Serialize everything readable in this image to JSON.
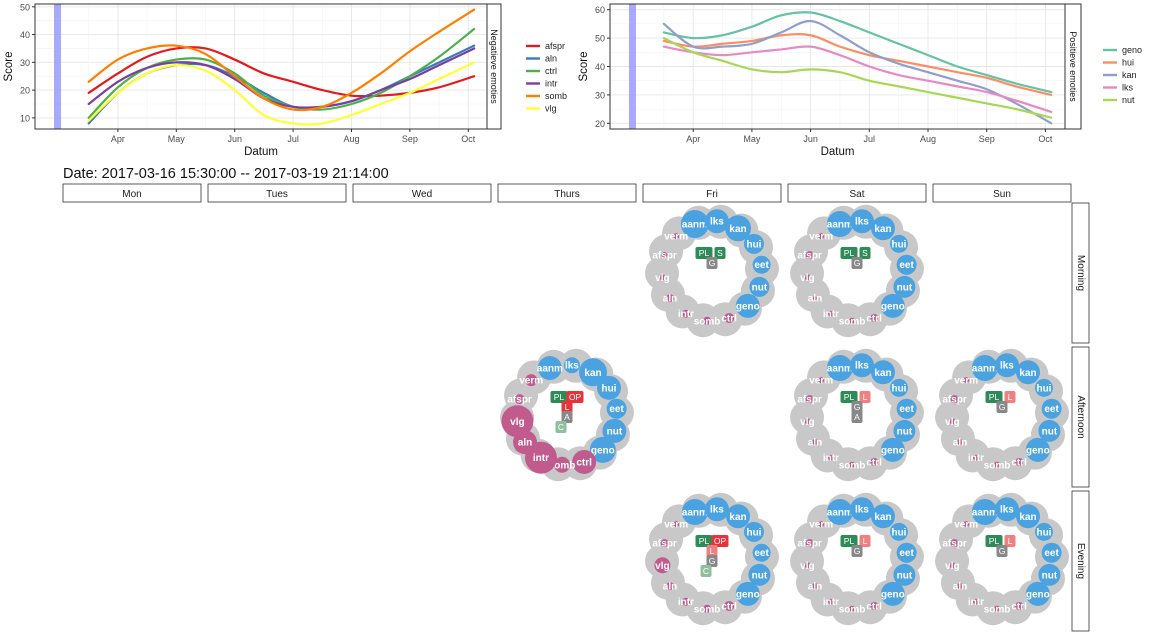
{
  "chart_data": [
    {
      "type": "line",
      "panel": "Negatieve emoties",
      "xlabel": "Datum",
      "ylabel": "Score",
      "x_ticks": [
        "Apr",
        "May",
        "Jun",
        "Jul",
        "Aug",
        "Sep",
        "Oct"
      ],
      "y_ticks": [
        10,
        20,
        30,
        40,
        50
      ],
      "ylim": [
        6,
        51
      ],
      "highlight_x_label": "",
      "grid": true,
      "legend_position": "right",
      "x_months": [
        0.5,
        1,
        1.5,
        2,
        2.5,
        3,
        3.5,
        4,
        4.5,
        5,
        5.5,
        6,
        6.5,
        7.1
      ],
      "series": [
        {
          "name": "afspr",
          "color": "#e41a1c",
          "values": [
            19,
            26,
            32,
            35,
            35,
            31,
            26,
            23,
            20,
            18,
            18,
            19,
            21,
            25
          ]
        },
        {
          "name": "aln",
          "color": "#377eb8",
          "values": [
            8,
            19,
            26,
            29,
            29,
            25,
            19,
            14,
            14,
            16,
            20,
            25,
            30,
            36
          ]
        },
        {
          "name": "ctrl",
          "color": "#4daf4a",
          "values": [
            10,
            21,
            28,
            31,
            31,
            26,
            18,
            14,
            13,
            15,
            19,
            25,
            32,
            42
          ]
        },
        {
          "name": "intr",
          "color": "#7b3fa0",
          "values": [
            15,
            23,
            28,
            30,
            29,
            24,
            17,
            14,
            14,
            16,
            20,
            24,
            29,
            35
          ]
        },
        {
          "name": "somb",
          "color": "#ff7f00",
          "values": [
            23,
            31,
            35,
            36,
            33,
            25,
            17,
            13,
            14,
            19,
            26,
            34,
            41,
            49
          ]
        },
        {
          "name": "vlg",
          "color": "#ffff33",
          "values": [
            9,
            19,
            26,
            29,
            27,
            20,
            11,
            8,
            8,
            11,
            15,
            19,
            24,
            30
          ]
        }
      ]
    },
    {
      "type": "line",
      "panel": "Positieve emoties",
      "xlabel": "Datum",
      "ylabel": "Score",
      "x_ticks": [
        "Apr",
        "May",
        "Jun",
        "Jul",
        "Aug",
        "Sep",
        "Oct"
      ],
      "y_ticks": [
        20,
        30,
        40,
        50,
        60
      ],
      "ylim": [
        18,
        62
      ],
      "grid": true,
      "legend_position": "right",
      "x_months": [
        0.5,
        1,
        1.5,
        2,
        2.5,
        3,
        3.5,
        4,
        4.5,
        5,
        5.5,
        6,
        6.5,
        7.1
      ],
      "series": [
        {
          "name": "geno",
          "color": "#66c2a5",
          "values": [
            52,
            50,
            51,
            54,
            58,
            59,
            56,
            52,
            48,
            44,
            40,
            37,
            34,
            31
          ]
        },
        {
          "name": "hui",
          "color": "#fc8d62",
          "values": [
            49,
            47,
            48,
            49,
            51,
            51,
            47,
            44,
            42,
            40,
            38,
            36,
            33,
            30
          ]
        },
        {
          "name": "kan",
          "color": "#8da0cb",
          "values": [
            55,
            47,
            47,
            48,
            52,
            56,
            51,
            45,
            41,
            38,
            35,
            32,
            27,
            20
          ]
        },
        {
          "name": "lks",
          "color": "#e78ac3",
          "values": [
            47,
            45,
            44,
            45,
            46,
            47,
            44,
            40,
            37,
            35,
            33,
            31,
            28,
            24
          ]
        },
        {
          "name": "nut",
          "color": "#a6d854",
          "values": [
            50,
            45,
            42,
            39,
            38,
            39,
            38,
            35,
            33,
            31,
            29,
            27,
            25,
            22
          ]
        }
      ]
    }
  ],
  "date_title": "Date: 2017-03-16 15:30:00 -- 2017-03-19 21:14:00",
  "days": [
    "Mon",
    "Tues",
    "Wed",
    "Thurs",
    "Fri",
    "Sat",
    "Sun"
  ],
  "periods": [
    "Morning",
    "Afternoon",
    "Evening"
  ],
  "ring_labels": [
    "aanm",
    "lks",
    "kan",
    "hui",
    "eet",
    "nut",
    "geno",
    "ctrl",
    "somb",
    "intr",
    "aln",
    "vlg",
    "afspr",
    "verm"
  ],
  "ring_colors": {
    "positive": "#4aa3e0",
    "negative": "#c15b8e",
    "ring": "#c8c8c8"
  },
  "grid_cells": [
    {
      "day": 4,
      "period": 0,
      "sizes": [
        14,
        12,
        13,
        10,
        9,
        10,
        12,
        5,
        4,
        4,
        4,
        3,
        3,
        3
      ],
      "badges": [
        {
          "t": "PL",
          "c": "#2e8b57"
        },
        {
          "t": "S",
          "c": "#2e8b57"
        },
        {
          "t": "G",
          "c": "#888888"
        }
      ]
    },
    {
      "day": 5,
      "period": 0,
      "sizes": [
        13,
        12,
        12,
        9,
        10,
        11,
        12,
        4,
        3,
        3,
        2,
        3,
        4,
        3
      ],
      "badges": [
        {
          "t": "PL",
          "c": "#2e8b57"
        },
        {
          "t": "S",
          "c": "#2e8b57"
        },
        {
          "t": "G",
          "c": "#888888"
        }
      ]
    },
    {
      "day": 3,
      "period": 1,
      "sizes": [
        12,
        8,
        14,
        12,
        10,
        12,
        13,
        12,
        8,
        16,
        12,
        16,
        5,
        6
      ],
      "badges": [
        {
          "t": "PL",
          "c": "#2e8b57"
        },
        {
          "t": "OP",
          "c": "#e8333a"
        },
        {
          "t": "L",
          "c": "#e8333a"
        },
        {
          "t": "A",
          "c": "#888888"
        },
        {
          "t": "C",
          "c": "#8fbf9f"
        }
      ]
    },
    {
      "day": 5,
      "period": 1,
      "sizes": [
        13,
        12,
        12,
        9,
        10,
        11,
        12,
        4,
        3,
        3,
        3,
        3,
        4,
        3
      ],
      "badges": [
        {
          "t": "PL",
          "c": "#2e8b57"
        },
        {
          "t": "L",
          "c": "#f08080"
        },
        {
          "t": "G",
          "c": "#888888"
        },
        {
          "t": "A",
          "c": "#888888"
        }
      ]
    },
    {
      "day": 6,
      "period": 1,
      "sizes": [
        13,
        12,
        12,
        9,
        10,
        11,
        12,
        4,
        3,
        3,
        3,
        3,
        4,
        3
      ],
      "badges": [
        {
          "t": "PL",
          "c": "#2e8b57"
        },
        {
          "t": "L",
          "c": "#f08080"
        },
        {
          "t": "G",
          "c": "#888888"
        }
      ]
    },
    {
      "day": 4,
      "period": 2,
      "sizes": [
        13,
        12,
        12,
        10,
        9,
        11,
        12,
        5,
        4,
        4,
        4,
        8,
        4,
        3
      ],
      "badges": [
        {
          "t": "PL",
          "c": "#2e8b57"
        },
        {
          "t": "OP",
          "c": "#e8333a"
        },
        {
          "t": "L",
          "c": "#f08080"
        },
        {
          "t": "G",
          "c": "#888888"
        },
        {
          "t": "C",
          "c": "#8fbf9f"
        }
      ]
    },
    {
      "day": 5,
      "period": 2,
      "sizes": [
        13,
        12,
        12,
        9,
        10,
        11,
        12,
        4,
        3,
        3,
        3,
        3,
        4,
        3
      ],
      "badges": [
        {
          "t": "PL",
          "c": "#2e8b57"
        },
        {
          "t": "L",
          "c": "#f08080"
        },
        {
          "t": "G",
          "c": "#888888"
        }
      ]
    },
    {
      "day": 6,
      "period": 2,
      "sizes": [
        13,
        12,
        12,
        9,
        10,
        11,
        12,
        4,
        3,
        3,
        3,
        3,
        4,
        3
      ],
      "badges": [
        {
          "t": "PL",
          "c": "#2e8b57"
        },
        {
          "t": "L",
          "c": "#f08080"
        },
        {
          "t": "G",
          "c": "#888888"
        }
      ]
    }
  ]
}
